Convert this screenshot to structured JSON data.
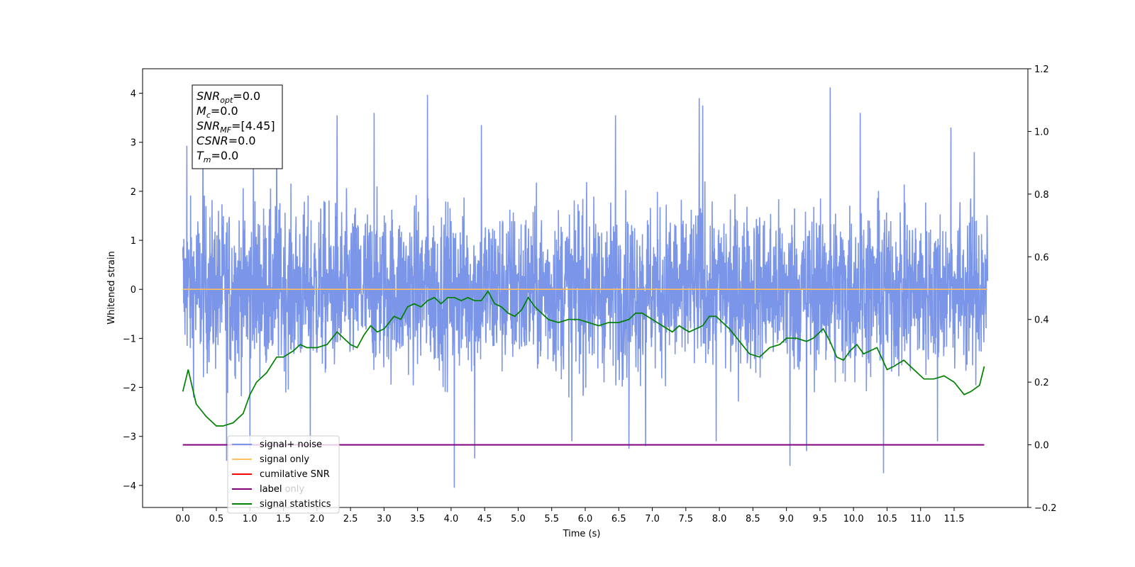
{
  "chart_data": {
    "type": "line",
    "xlabel": "Time (s)",
    "ylabel": "Whitened strain",
    "xlim": [
      -0.6,
      12.6
    ],
    "ylim": [
      -4.45,
      4.5
    ],
    "y2lim": [
      -0.2,
      1.2
    ],
    "x_ticks": [
      "0.0",
      "0.5",
      "1.0",
      "1.5",
      "2.0",
      "2.5",
      "3.0",
      "3.5",
      "4.0",
      "4.5",
      "5.0",
      "5.5",
      "6.0",
      "6.5",
      "7.0",
      "7.5",
      "8.0",
      "8.5",
      "9.0",
      "9.5",
      "10.0",
      "10.5",
      "11.0",
      "11.5"
    ],
    "y_ticks": [
      4,
      3,
      2,
      1,
      0,
      -1,
      -2,
      -3,
      -4
    ],
    "y2_ticks": [
      "1.2",
      "1.0",
      "0.8",
      "0.6",
      "0.4",
      "0.2",
      "0.0",
      "−0.2"
    ],
    "info_box": [
      {
        "main": "SNR",
        "sub": "opt",
        "rest": "=0.0"
      },
      {
        "main": "M",
        "sub": "c",
        "rest": "=0.0"
      },
      {
        "main": "SNR",
        "sub": "MF",
        "rest": "=[4.45]"
      },
      {
        "main": "CSNR",
        "sub": "",
        "rest": "=0.0"
      },
      {
        "main": "T",
        "sub": "m",
        "rest": "=0.0"
      }
    ],
    "legend": {
      "placement": "lower-left",
      "entries": [
        {
          "label": "signal+ noise",
          "color": "#7b95e8"
        },
        {
          "label": "signal only",
          "color": "#ffbf5e"
        },
        {
          "label": "cumilative SNR",
          "color": "#ff0000"
        },
        {
          "label": "label",
          "color": "#800080"
        },
        {
          "label": "signal statistics",
          "color": "#008000"
        }
      ]
    },
    "hidden_legend_text": "label only",
    "series": [
      {
        "name": "signal+ noise",
        "axis": "left",
        "color": "#7b95e8",
        "x_range": [
          0.0,
          12.0
        ],
        "envelope_upper": 2.2,
        "envelope_lower": -2.4,
        "peaks": [
          [
            0.06,
            2.93
          ],
          [
            0.3,
            3.2
          ],
          [
            1.05,
            3.18
          ],
          [
            1.4,
            3.55
          ],
          [
            2.3,
            3.55
          ],
          [
            2.85,
            3.6
          ],
          [
            3.65,
            3.97
          ],
          [
            4.45,
            3.35
          ],
          [
            6.45,
            3.55
          ],
          [
            7.7,
            3.9
          ],
          [
            7.75,
            3.75
          ],
          [
            9.65,
            4.12
          ],
          [
            10.1,
            3.6
          ],
          [
            11.45,
            3.3
          ],
          [
            11.8,
            2.8
          ]
        ],
        "troughs": [
          [
            0.65,
            -3.5
          ],
          [
            1.0,
            -3.25
          ],
          [
            1.9,
            -3.2
          ],
          [
            4.05,
            -4.05
          ],
          [
            4.35,
            -3.45
          ],
          [
            5.8,
            -3.1
          ],
          [
            6.65,
            -3.25
          ],
          [
            6.9,
            -3.2
          ],
          [
            7.95,
            -3.1
          ],
          [
            9.05,
            -3.6
          ],
          [
            9.3,
            -3.3
          ],
          [
            10.45,
            -3.75
          ],
          [
            11.25,
            -3.1
          ]
        ]
      },
      {
        "name": "signal only",
        "axis": "left",
        "color": "#ffbf5e",
        "x": [
          0.0,
          12.0
        ],
        "y": [
          0.0,
          0.0
        ]
      },
      {
        "name": "label",
        "axis": "right",
        "color": "#800080",
        "x": [
          0.0,
          11.95
        ],
        "y": [
          0.0,
          0.0
        ]
      },
      {
        "name": "signal statistics",
        "axis": "right",
        "color": "#008000",
        "x": [
          0.0,
          0.08,
          0.2,
          0.35,
          0.5,
          0.6,
          0.75,
          0.9,
          1.0,
          1.1,
          1.25,
          1.4,
          1.5,
          1.65,
          1.75,
          1.85,
          2.0,
          2.15,
          2.3,
          2.4,
          2.5,
          2.6,
          2.7,
          2.8,
          2.9,
          3.0,
          3.15,
          3.25,
          3.35,
          3.45,
          3.55,
          3.65,
          3.75,
          3.85,
          3.95,
          4.05,
          4.15,
          4.25,
          4.35,
          4.45,
          4.55,
          4.65,
          4.75,
          4.85,
          4.95,
          5.05,
          5.15,
          5.25,
          5.35,
          5.45,
          5.6,
          5.75,
          5.9,
          6.05,
          6.2,
          6.35,
          6.5,
          6.65,
          6.75,
          6.85,
          7.0,
          7.15,
          7.3,
          7.4,
          7.55,
          7.65,
          7.75,
          7.85,
          7.95,
          8.05,
          8.15,
          8.3,
          8.45,
          8.6,
          8.75,
          8.9,
          9.0,
          9.15,
          9.3,
          9.4,
          9.55,
          9.65,
          9.75,
          9.85,
          9.95,
          10.05,
          10.15,
          10.25,
          10.35,
          10.5,
          10.6,
          10.75,
          10.9,
          11.05,
          11.2,
          11.35,
          11.5,
          11.65,
          11.75,
          11.88,
          11.95
        ],
        "y": [
          0.17,
          0.24,
          0.13,
          0.09,
          0.06,
          0.06,
          0.07,
          0.1,
          0.16,
          0.2,
          0.23,
          0.28,
          0.28,
          0.3,
          0.32,
          0.31,
          0.31,
          0.32,
          0.36,
          0.34,
          0.32,
          0.31,
          0.35,
          0.38,
          0.36,
          0.37,
          0.41,
          0.4,
          0.44,
          0.45,
          0.44,
          0.46,
          0.47,
          0.45,
          0.47,
          0.47,
          0.46,
          0.47,
          0.46,
          0.46,
          0.49,
          0.45,
          0.44,
          0.42,
          0.41,
          0.43,
          0.47,
          0.44,
          0.42,
          0.4,
          0.39,
          0.4,
          0.4,
          0.39,
          0.38,
          0.39,
          0.39,
          0.4,
          0.42,
          0.42,
          0.4,
          0.38,
          0.36,
          0.38,
          0.36,
          0.37,
          0.38,
          0.41,
          0.41,
          0.39,
          0.37,
          0.33,
          0.29,
          0.28,
          0.31,
          0.32,
          0.34,
          0.34,
          0.33,
          0.34,
          0.37,
          0.33,
          0.28,
          0.27,
          0.3,
          0.32,
          0.29,
          0.3,
          0.31,
          0.24,
          0.25,
          0.27,
          0.24,
          0.21,
          0.21,
          0.22,
          0.2,
          0.16,
          0.17,
          0.19,
          0.25
        ]
      }
    ]
  }
}
